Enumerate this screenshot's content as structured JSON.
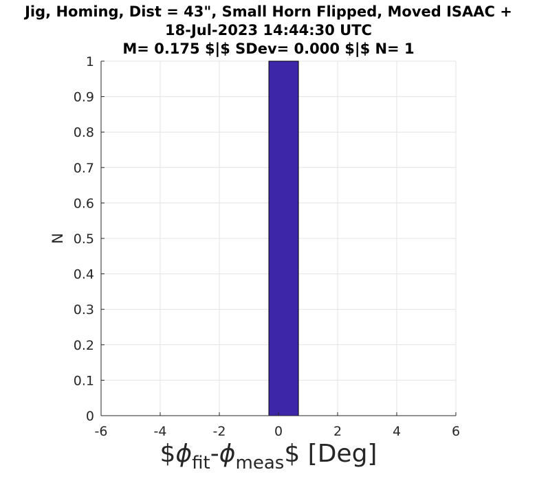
{
  "chart_data": {
    "type": "bar",
    "title_lines": [
      "Jig, Homing, Dist = 43\", Small Horn Flipped, Moved ISAAC +",
      "18-Jul-2023 14:44:30 UTC",
      "M= 0.175 $|$ SDev= 0.000 $|$ N= 1"
    ],
    "xlabel_parts": {
      "pre": "$",
      "phi1": "ϕ",
      "sub1": "fit",
      "dash": "-",
      "phi2": "ϕ",
      "sub2": "meas",
      "post": "$ [Deg]"
    },
    "ylabel": "N",
    "bins": [
      {
        "x_start": -0.325,
        "x_end": 0.675,
        "count": 1
      }
    ],
    "xlim": [
      -6,
      6
    ],
    "ylim": [
      0,
      1
    ],
    "x_ticks": [
      -6,
      -4,
      -2,
      0,
      2,
      4,
      6
    ],
    "y_ticks": [
      0,
      0.1,
      0.2,
      0.3,
      0.4,
      0.5,
      0.6,
      0.7,
      0.8,
      0.9,
      1
    ],
    "bar_color": "#3e26a8",
    "grid": true
  }
}
